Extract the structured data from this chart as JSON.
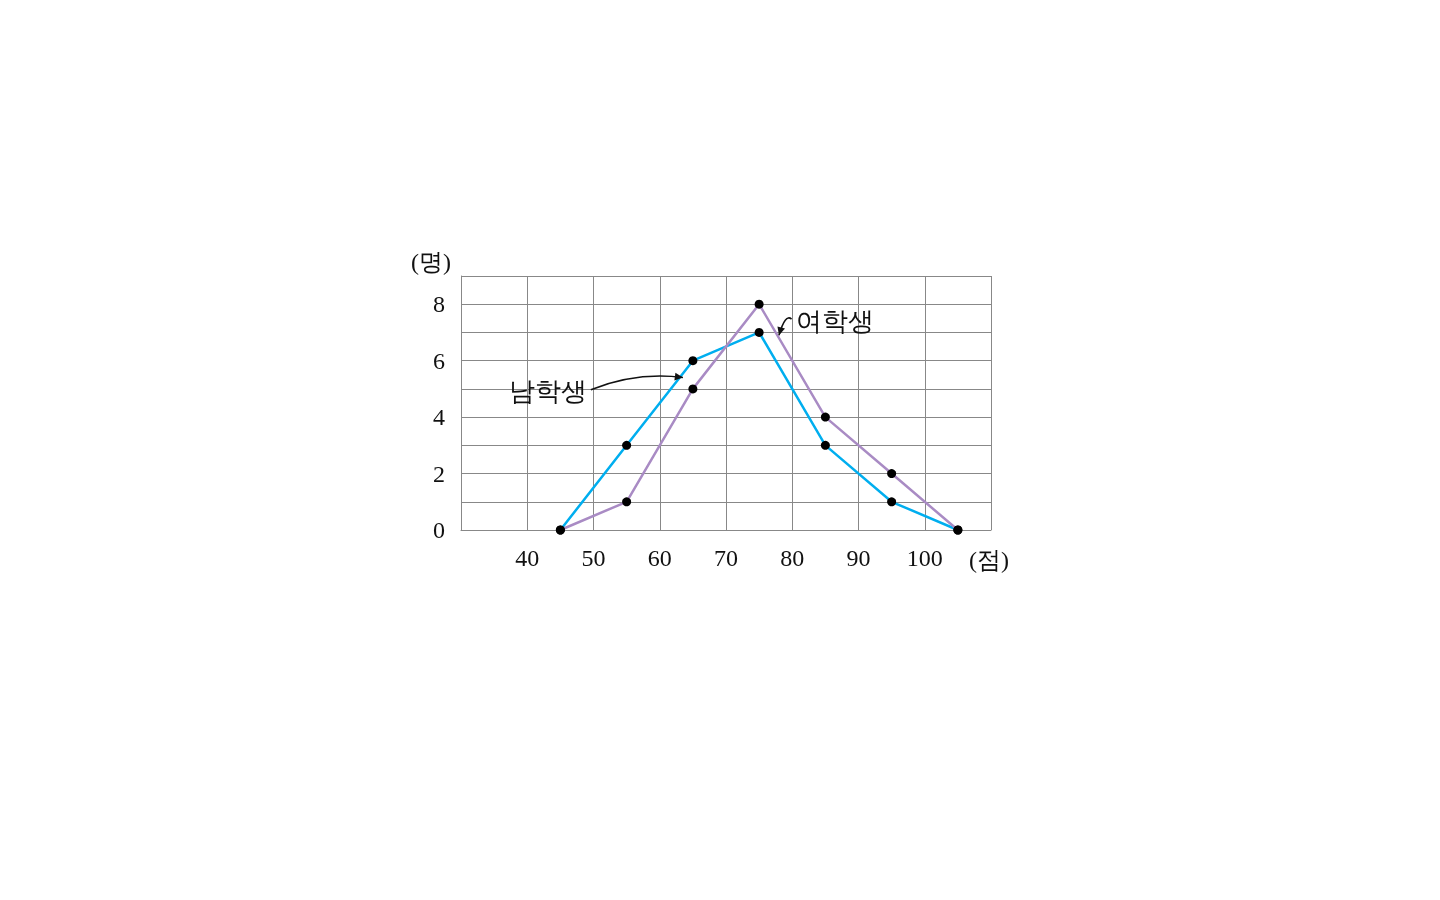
{
  "chart_data": {
    "type": "line",
    "xlabel": "(점)",
    "ylabel": "(명)",
    "x": [
      45,
      55,
      65,
      75,
      85,
      95,
      105
    ],
    "series": [
      {
        "name": "남학생",
        "color": "#00aeef",
        "values": [
          0,
          3,
          6,
          7,
          3,
          1,
          0
        ]
      },
      {
        "name": "여학생",
        "color": "#a98bc4",
        "values": [
          0,
          1,
          5,
          8,
          4,
          2,
          0
        ]
      }
    ],
    "xlim": [
      30,
      110
    ],
    "xticks": [
      {
        "value": 30,
        "label": null
      },
      40,
      50,
      60,
      70,
      80,
      90,
      100,
      {
        "value": 110,
        "label": null
      }
    ],
    "ylim": [
      0,
      9
    ],
    "yticks": [
      0,
      {
        "value": 1,
        "label": null
      },
      2,
      {
        "value": 3,
        "label": null
      },
      4,
      {
        "value": 5,
        "label": null
      },
      6,
      {
        "value": 7,
        "label": null
      },
      8,
      {
        "value": 9,
        "label": null
      }
    ],
    "grid": true,
    "legend": false,
    "marker": "circle",
    "line_style": "solid"
  }
}
